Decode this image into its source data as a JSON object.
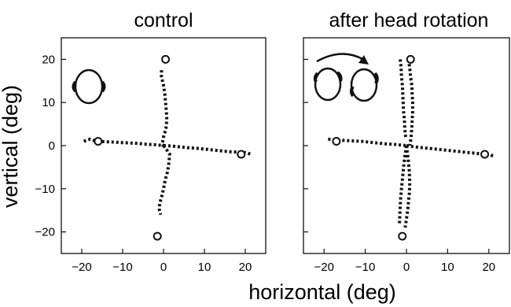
{
  "figure": {
    "ylabel": "vertical (deg)",
    "xlabel": "horizontal (deg)"
  },
  "chart_data": [
    {
      "type": "scatter",
      "title": "control",
      "xlim": [
        -25,
        25
      ],
      "ylim": [
        -25,
        25
      ],
      "xticks": [
        -20,
        -10,
        0,
        10,
        20
      ],
      "yticks": [
        20,
        10,
        0,
        -10,
        -20
      ],
      "grid": false,
      "legend": "none",
      "icon": "head-upright-icon",
      "targets": [
        {
          "x": 0.5,
          "y": 20
        },
        {
          "x": -16,
          "y": 1
        },
        {
          "x": 19,
          "y": -2
        },
        {
          "x": -1.5,
          "y": -21
        }
      ],
      "series": [
        {
          "x": [
            -0.5,
            -0.5,
            0,
            0.3,
            0.5,
            0.7,
            0.8,
            0.6,
            0.3,
            0,
            -0.2,
            -0.4,
            -0.3,
            0
          ],
          "y": [
            17.5,
            16,
            14,
            12,
            10,
            8,
            6,
            4,
            3,
            2,
            1,
            0.5,
            0.3,
            0
          ]
        },
        {
          "x": [
            0,
            0.8,
            1.5,
            1.3,
            1,
            0.4,
            0,
            -0.5,
            -0.8,
            -1,
            -1,
            -0.7
          ],
          "y": [
            0,
            -1,
            -2,
            -4,
            -6,
            -8,
            -10,
            -12,
            -13,
            -14,
            -15,
            -16
          ]
        },
        {
          "x": [
            -19.5,
            -18,
            -17,
            -16,
            -14,
            -12,
            -10,
            -8,
            -6,
            -4,
            -2,
            0
          ],
          "y": [
            1,
            1.5,
            1.2,
            1,
            0.9,
            0.8,
            0.7,
            0.6,
            0.5,
            0.3,
            0.2,
            0
          ]
        },
        {
          "x": [
            0,
            2,
            4,
            6,
            8,
            10,
            12,
            14,
            16,
            18,
            20,
            21.5
          ],
          "y": [
            0,
            -0.1,
            -0.3,
            -0.5,
            -0.6,
            -0.8,
            -1,
            -1.2,
            -1.4,
            -1.5,
            -1.6,
            -2
          ]
        }
      ]
    },
    {
      "type": "scatter",
      "title": "after head rotation",
      "xlim": [
        -25,
        25
      ],
      "ylim": [
        -25,
        25
      ],
      "xticks": [
        -20,
        -10,
        0,
        10,
        20
      ],
      "yticks": [
        20,
        10,
        0,
        -10,
        -20
      ],
      "grid": false,
      "legend": "none",
      "icon": "head-rotation-icon",
      "targets": [
        {
          "x": 1,
          "y": 20
        },
        {
          "x": -17,
          "y": 1
        },
        {
          "x": 19,
          "y": -2
        },
        {
          "x": -1,
          "y": -21
        }
      ],
      "series": [
        {
          "x": [
            -1.5,
            -1.3,
            -1.2,
            -1,
            -0.9,
            -0.8,
            -0.7,
            -0.5,
            -0.4,
            -0.2
          ],
          "y": [
            20,
            18,
            16,
            14,
            12,
            10,
            8,
            6,
            4,
            2
          ]
        },
        {
          "x": [
            0.5,
            0.8,
            1,
            1.3,
            1.4,
            1.5,
            1.5,
            1.4,
            1.3,
            1.1,
            1,
            0.8
          ],
          "y": [
            20,
            18,
            16,
            14,
            12,
            10,
            8,
            6,
            4,
            2,
            1,
            0
          ]
        },
        {
          "x": [
            0,
            -0.3,
            -0.6,
            -0.8,
            -1,
            -1.2,
            -1.4,
            -1.5,
            -1.6,
            -1.7
          ],
          "y": [
            0,
            -2,
            -4,
            -6,
            -8,
            -10,
            -12,
            -14,
            -16,
            -18
          ]
        },
        {
          "x": [
            0,
            0.4,
            0.7,
            0.8,
            0.7,
            0.5,
            0.3,
            0,
            -0.3
          ],
          "y": [
            0,
            -3,
            -6,
            -9,
            -11,
            -13,
            -15,
            -17,
            -19
          ]
        },
        {
          "x": [
            -19,
            -17,
            -15,
            -13,
            -11,
            -9,
            -7,
            -5,
            -3,
            -1,
            0
          ],
          "y": [
            1.5,
            1.3,
            1.2,
            1.1,
            1,
            0.8,
            0.6,
            0.4,
            0.3,
            0.1,
            0
          ]
        },
        {
          "x": [
            0,
            2,
            4,
            6,
            8,
            10,
            12,
            14,
            16,
            18,
            20,
            21.5
          ],
          "y": [
            0,
            -0.3,
            -0.5,
            -0.7,
            -0.9,
            -1.1,
            -1.3,
            -1.5,
            -1.7,
            -1.9,
            -2.1,
            -2.5
          ]
        }
      ]
    }
  ]
}
